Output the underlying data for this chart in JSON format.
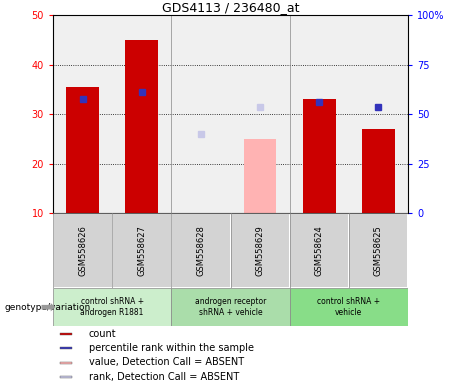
{
  "title": "GDS4113 / 236480_at",
  "samples": [
    "GSM558626",
    "GSM558627",
    "GSM558628",
    "GSM558629",
    "GSM558624",
    "GSM558625"
  ],
  "groups": [
    {
      "label": "control shRNA +\nandrogen R1881",
      "color": "#cceecc",
      "samples": [
        0,
        1
      ]
    },
    {
      "label": "androgen receptor\nshRNA + vehicle",
      "color": "#aaddaa",
      "samples": [
        2,
        3
      ]
    },
    {
      "label": "control shRNA +\nvehicle",
      "color": "#88dd88",
      "samples": [
        4,
        5
      ]
    }
  ],
  "bar_values": [
    35.5,
    45.0,
    null,
    null,
    33.0,
    27.0
  ],
  "bar_color_present": "#cc0000",
  "bar_color_absent": "#ffb3b3",
  "absent_bar_values": [
    null,
    null,
    10.0,
    25.0,
    null,
    null
  ],
  "blue_sq_present": [
    33.0,
    34.5,
    null,
    null,
    32.5,
    31.5
  ],
  "blue_sq_absent": [
    null,
    null,
    26.0,
    31.5,
    null,
    null
  ],
  "ylim_left": [
    10,
    50
  ],
  "ylim_right": [
    0,
    100
  ],
  "yticks_left": [
    10,
    20,
    30,
    40,
    50
  ],
  "ytick_labels_left": [
    "10",
    "20",
    "30",
    "40",
    "50"
  ],
  "yticks_right": [
    0,
    25,
    50,
    75,
    100
  ],
  "ytick_labels_right": [
    "0",
    "25",
    "50",
    "75",
    "100%"
  ],
  "bar_width": 0.55,
  "legend_items": [
    {
      "color": "#cc0000",
      "label": "count"
    },
    {
      "color": "#3333bb",
      "label": "percentile rank within the sample"
    },
    {
      "color": "#ffb3b3",
      "label": "value, Detection Call = ABSENT"
    },
    {
      "color": "#c8c8e8",
      "label": "rank, Detection Call = ABSENT"
    }
  ]
}
